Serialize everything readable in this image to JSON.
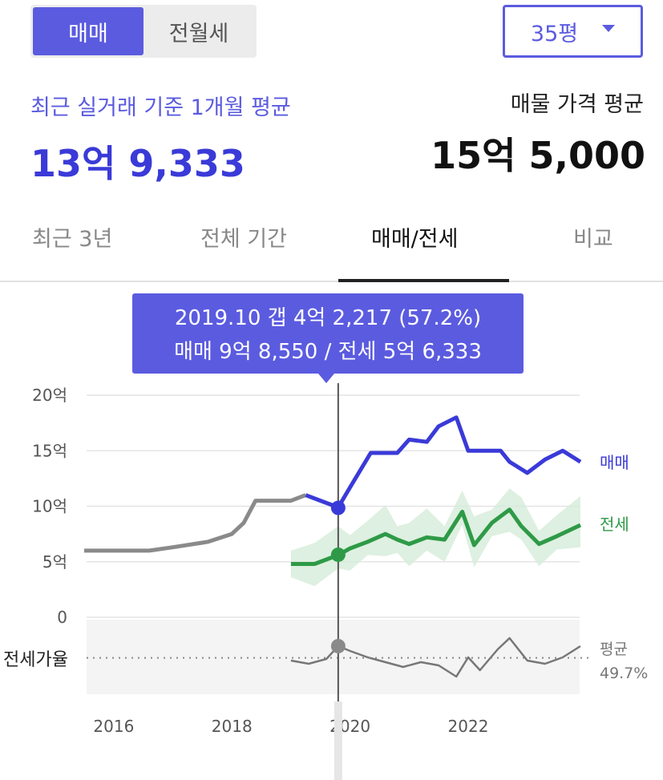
{
  "deal_type": {
    "active": "매매",
    "inactive": "전월세"
  },
  "area_select": {
    "value": "35평"
  },
  "summary": {
    "recent_label": "최근 실거래 기준 1개월 평균",
    "recent_value": "13억 9,333",
    "listing_label": "매물 가격 평균",
    "listing_value": "15억 5,000"
  },
  "tabs": [
    "최근 3년",
    "전체 기간",
    "매매/전세",
    "비교"
  ],
  "active_tab": 2,
  "tooltip": {
    "line1": "2019.10  갭 4억 2,217 (57.2%)",
    "line2": "매매 9억 8,550 / 전세 5억 6,333"
  },
  "colors": {
    "accent": "#5b5be0",
    "sale": "#3a3ad8",
    "jeonse": "#2e9a47",
    "ratio": "#777777"
  },
  "chart_data": {
    "type": "line",
    "y_unit": "억",
    "ylim": [
      0,
      20
    ],
    "y_ticks": [
      "20억",
      "15억",
      "10억",
      "5억",
      "0"
    ],
    "x_ticks": [
      "2016",
      "2018",
      "2020",
      "2022"
    ],
    "series": [
      {
        "name": "매매",
        "x": [
          2015.5,
          2016.6,
          2017.0,
          2017.6,
          2018.0,
          2018.2,
          2018.4,
          2018.7,
          2019.0,
          2019.25,
          2019.5,
          2019.8,
          2020.0,
          2020.35,
          2020.8,
          2021.0,
          2021.3,
          2021.5,
          2021.8,
          2022.0,
          2022.3,
          2022.55,
          2022.7,
          2023.0,
          2023.3,
          2023.6,
          2023.9
        ],
        "values": [
          6.0,
          6.0,
          6.3,
          6.8,
          7.5,
          8.5,
          10.5,
          10.5,
          10.5,
          11.0,
          10.5,
          9.9,
          11.7,
          14.8,
          14.8,
          16.0,
          15.8,
          17.2,
          18.0,
          15.0,
          15.0,
          15.0,
          14.0,
          13.0,
          14.2,
          15.0,
          14.0
        ]
      },
      {
        "name": "전세",
        "x": [
          2019.0,
          2019.4,
          2019.8,
          2020.0,
          2020.3,
          2020.6,
          2020.8,
          2021.0,
          2021.3,
          2021.6,
          2021.9,
          2022.1,
          2022.4,
          2022.7,
          2022.9,
          2023.2,
          2023.5,
          2023.9
        ],
        "values": [
          4.8,
          4.8,
          5.6,
          6.2,
          6.8,
          7.5,
          7.0,
          6.6,
          7.2,
          7.0,
          9.5,
          6.5,
          8.5,
          9.7,
          8.2,
          6.6,
          7.3,
          8.3
        ]
      },
      {
        "name": "전세가율",
        "x": [
          2019.0,
          2019.3,
          2019.6,
          2019.8,
          2020.0,
          2020.3,
          2020.6,
          2020.9,
          2021.2,
          2021.5,
          2021.8,
          2022.0,
          2022.2,
          2022.5,
          2022.7,
          2023.0,
          2023.3,
          2023.6,
          2023.9
        ],
        "values": [
          48,
          46,
          49,
          57,
          54,
          50,
          47,
          44,
          47,
          45,
          38,
          50,
          42,
          55,
          62,
          48,
          46,
          50,
          57
        ]
      }
    ],
    "ratio_label": "전세가율",
    "average_label": "평균",
    "average_value": "49.7%",
    "highlight": {
      "x": 2019.8,
      "sale": 9.855,
      "jeonse": 5.6333
    }
  }
}
